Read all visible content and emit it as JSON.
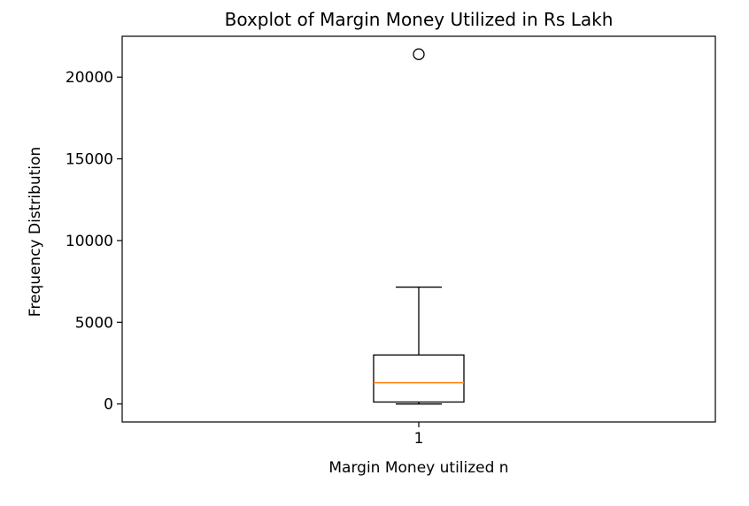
{
  "chart_data": {
    "type": "boxplot",
    "title": "Boxplot of Margin Money Utilized in Rs Lakh",
    "xlabel": "Margin Money utilized n",
    "ylabel": "Frequency Distribution",
    "categories": [
      "1"
    ],
    "ylim": [
      -1100,
      22500
    ],
    "yticks": [
      0,
      5000,
      10000,
      15000,
      20000
    ],
    "ytick_labels": [
      "0",
      "5000",
      "10000",
      "15000",
      "20000"
    ],
    "boxes": [
      {
        "category": "1",
        "whisker_low": 0,
        "q1": 120,
        "median": 1300,
        "q3": 3000,
        "whisker_high": 7150,
        "fliers": [
          21400
        ]
      }
    ],
    "grid": false,
    "colors": {
      "median": "#ff7f0e",
      "box": "#000000",
      "axes": "#000000"
    }
  }
}
